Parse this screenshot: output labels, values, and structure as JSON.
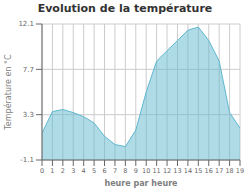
{
  "chart_data": {
    "type": "area",
    "title": "Evolution de la température",
    "xlabel": "heure par heure",
    "ylabel": "Température en °C",
    "x": [
      0,
      1,
      2,
      3,
      4,
      5,
      6,
      7,
      8,
      9,
      10,
      11,
      12,
      13,
      14,
      15,
      16,
      17,
      18,
      19
    ],
    "values": [
      1.5,
      3.6,
      3.8,
      3.5,
      3.1,
      2.5,
      1.2,
      0.4,
      0.2,
      1.8,
      5.5,
      8.5,
      9.5,
      10.5,
      11.5,
      11.8,
      10.5,
      8.5,
      3.5,
      2.0
    ],
    "xlim": [
      0,
      19
    ],
    "ylim": [
      -1.1,
      12.1
    ],
    "xticks": [
      0,
      1,
      2,
      3,
      4,
      5,
      6,
      7,
      8,
      9,
      10,
      11,
      12,
      13,
      14,
      15,
      16,
      17,
      18,
      19
    ],
    "yticks": [
      -1.1,
      3.3,
      7.7,
      12.1
    ],
    "color": "#60b8d0",
    "grid": true
  }
}
